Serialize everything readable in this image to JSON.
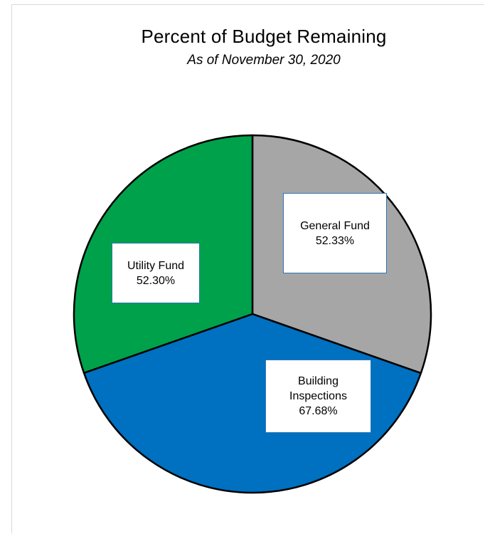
{
  "chart_data": {
    "type": "pie",
    "title": "Percent of Budget Remaining",
    "subtitle": "As of November 30, 2020",
    "slices": [
      {
        "name": "General Fund",
        "label": "52.33%",
        "value": 52.33,
        "color": "#a6a6a6"
      },
      {
        "name": "Building Inspections",
        "label": "67.68%",
        "value": 67.68,
        "color": "#0070c0"
      },
      {
        "name": "Utility Fund",
        "label": "52.30%",
        "value": 52.3,
        "color": "#00a14b"
      }
    ],
    "legend": "none",
    "label_border_color": "#2e75b6"
  }
}
